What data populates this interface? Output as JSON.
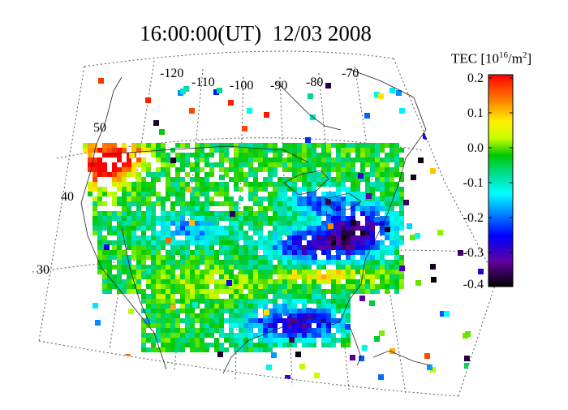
{
  "title": "16:00:00(UT)  12/03 2008",
  "map": {
    "longitude_labels": [
      "-120",
      "-110",
      "-100",
      "-90",
      "-80",
      "-70"
    ],
    "latitude_labels": [
      "50",
      "40",
      "30"
    ]
  },
  "colorbar": {
    "title_prefix": "TEC [10",
    "title_exp": "16",
    "title_mid": "/m",
    "title_exp2": "2",
    "title_suffix": "]",
    "ticks": [
      "0.2",
      "0.1",
      "0.0",
      "-0.1",
      "-0.2",
      "-0.3",
      "-0.4"
    ],
    "min": -0.4,
    "max": 0.2,
    "colors": [
      "#ff0000",
      "#ff8000",
      "#ffff00",
      "#00c800",
      "#00ffff",
      "#0000ff",
      "#800080",
      "#000000"
    ]
  }
}
